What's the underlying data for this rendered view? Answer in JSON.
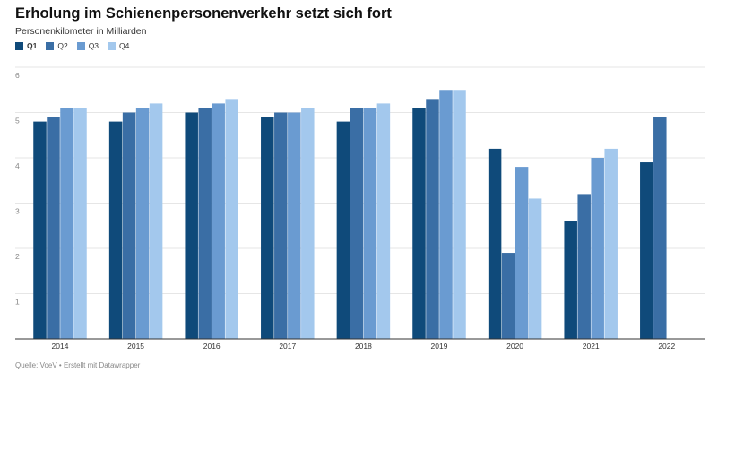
{
  "header": {
    "title": "Erholung im Schienenpersonenverkehr setzt sich fort",
    "subtitle": "Personenkilometer in Milliarden"
  },
  "footer": {
    "source": "Quelle: VoeV • Erstellt mit Datawrapper"
  },
  "chart_data": {
    "type": "bar",
    "title": "Erholung im Schienenpersonenverkehr setzt sich fort",
    "subtitle": "Personenkilometer in Milliarden",
    "categories": [
      "2014",
      "2015",
      "2016",
      "2017",
      "2018",
      "2019",
      "2020",
      "2021",
      "2022"
    ],
    "series": [
      {
        "name": "Q1",
        "color": "#0f4a7a",
        "values": [
          4.8,
          4.8,
          5.0,
          4.9,
          4.8,
          5.1,
          4.2,
          2.6,
          3.9
        ]
      },
      {
        "name": "Q2",
        "color": "#3a6ea5",
        "values": [
          4.9,
          5.0,
          5.1,
          5.0,
          5.1,
          5.3,
          1.9,
          3.2,
          4.9
        ]
      },
      {
        "name": "Q3",
        "color": "#6a9bd1",
        "values": [
          5.1,
          5.1,
          5.2,
          5.0,
          5.1,
          5.5,
          3.8,
          4.0,
          null
        ]
      },
      {
        "name": "Q4",
        "color": "#a3c8ed",
        "values": [
          5.1,
          5.2,
          5.3,
          5.1,
          5.2,
          5.5,
          3.1,
          4.2,
          null
        ]
      }
    ],
    "ylim": [
      0,
      6
    ],
    "yticks": [
      "1",
      "2",
      "3",
      "4",
      "5",
      "6"
    ],
    "grid": true,
    "legend": "top-left"
  }
}
